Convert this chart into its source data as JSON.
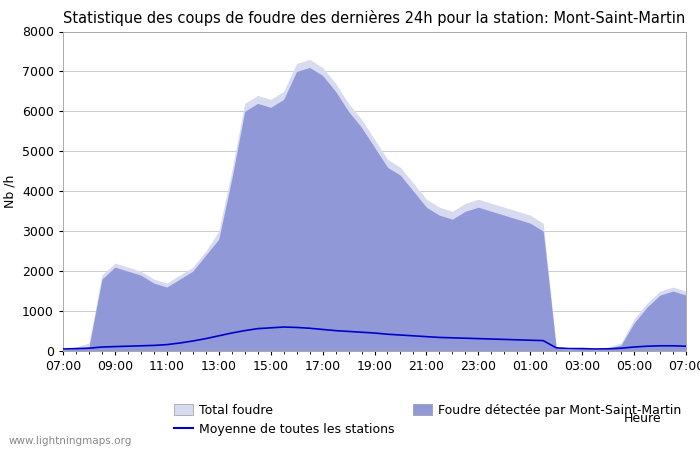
{
  "title": "Statistique des coups de foudre des dernières 24h pour la station: Mont-Saint-Martin",
  "xlabel": "Heure",
  "ylabel": "Nb /h",
  "ylim": [
    0,
    8000
  ],
  "yticks": [
    0,
    1000,
    2000,
    3000,
    4000,
    5000,
    6000,
    7000,
    8000
  ],
  "xtick_labels": [
    "07:00",
    "09:00",
    "11:00",
    "13:00",
    "15:00",
    "17:00",
    "19:00",
    "21:00",
    "23:00",
    "01:00",
    "03:00",
    "05:00",
    "07:00"
  ],
  "watermark": "www.lightningmaps.org",
  "legend_entries": [
    {
      "label": "Total foudre",
      "color": "#d8daf0",
      "type": "fill"
    },
    {
      "label": "Moyenne de toutes les stations",
      "color": "#0000cc",
      "type": "line"
    },
    {
      "label": "Foudre détectée par Mont-Saint-Martin",
      "color": "#9098d8",
      "type": "fill"
    }
  ],
  "bg_color": "#ffffff",
  "plot_bg_color": "#ffffff",
  "grid_color": "#cccccc",
  "fill_total_color": "#d8daf0",
  "fill_station_color": "#9098d8",
  "line_color": "#0000cc",
  "title_fontsize": 10.5,
  "axis_fontsize": 9,
  "tick_fontsize": 9,
  "n_points": 49,
  "total_foudre": [
    50,
    100,
    200,
    1900,
    2200,
    2100,
    2000,
    1800,
    1700,
    1900,
    2100,
    2500,
    3000,
    4500,
    6200,
    6400,
    6300,
    6500,
    7200,
    7300,
    7100,
    6700,
    6200,
    5800,
    5300,
    4800,
    4600,
    4200,
    3800,
    3600,
    3500,
    3700,
    3800,
    3700,
    3600,
    3500,
    3400,
    3200,
    100,
    50,
    100,
    50,
    100,
    200,
    800,
    1200,
    1500,
    1600,
    1500
  ],
  "foudre_station": [
    30,
    60,
    100,
    1800,
    2100,
    2000,
    1900,
    1700,
    1600,
    1800,
    2000,
    2400,
    2800,
    4300,
    6000,
    6200,
    6100,
    6300,
    7000,
    7100,
    6900,
    6500,
    6000,
    5600,
    5100,
    4600,
    4400,
    4000,
    3600,
    3400,
    3300,
    3500,
    3600,
    3500,
    3400,
    3300,
    3200,
    3000,
    80,
    30,
    60,
    30,
    60,
    150,
    700,
    1100,
    1400,
    1500,
    1400
  ],
  "moyenne": [
    50,
    60,
    70,
    100,
    110,
    120,
    130,
    140,
    160,
    200,
    250,
    310,
    380,
    450,
    510,
    560,
    580,
    600,
    590,
    570,
    540,
    510,
    490,
    470,
    450,
    420,
    400,
    380,
    360,
    340,
    330,
    320,
    310,
    300,
    290,
    280,
    270,
    260,
    80,
    60,
    60,
    50,
    55,
    70,
    100,
    120,
    130,
    130,
    120
  ]
}
